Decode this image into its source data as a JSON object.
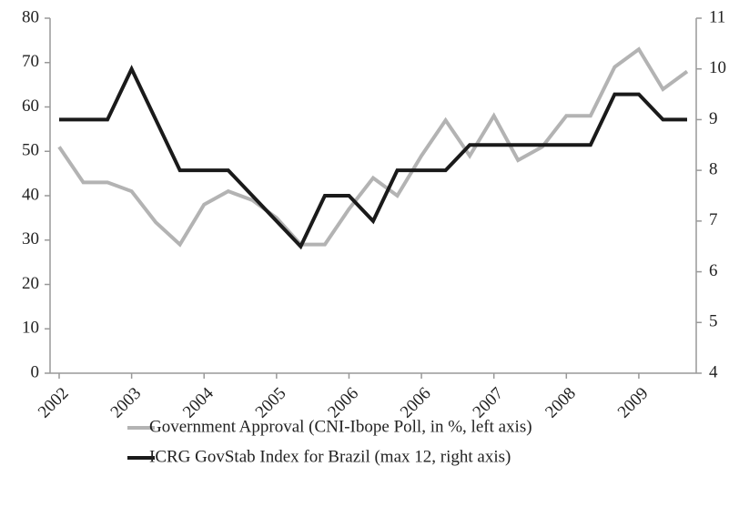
{
  "chart_data": {
    "type": "line",
    "categories": [
      "2002",
      null,
      null,
      "2003",
      null,
      null,
      "2004",
      null,
      null,
      "2005",
      null,
      null,
      "2006",
      null,
      null,
      "2006",
      null,
      null,
      "2007",
      null,
      null,
      "2008",
      null,
      null,
      "2009",
      null,
      null
    ],
    "series": [
      {
        "name": "Government Approval (CNI-Ibope Poll, in %, left axis)",
        "color": "#b3b3b3",
        "axis": "y",
        "values": [
          51,
          43,
          43,
          41,
          34,
          29,
          38,
          41,
          39,
          35,
          29,
          29,
          37,
          44,
          40,
          49,
          57,
          49,
          58,
          48,
          51,
          58,
          58,
          69,
          73,
          64,
          68
        ]
      },
      {
        "name": "ICRG GovStab Index for Brazil (max 12, right axis)",
        "color": "#1a1a1a",
        "axis": "y2",
        "values": [
          9,
          9,
          9,
          10,
          9,
          8,
          8,
          8,
          7.5,
          7,
          6.5,
          7.5,
          7.5,
          7,
          8,
          8,
          8,
          8.5,
          8.5,
          8.5,
          8.5,
          8.5,
          8.5,
          9.5,
          9.5,
          9,
          9
        ]
      }
    ],
    "ylim": [
      0,
      80
    ],
    "yticks": [
      0,
      10,
      20,
      30,
      40,
      50,
      60,
      70,
      80
    ],
    "y2lim": [
      4,
      11
    ],
    "y2ticks": [
      4,
      5,
      6,
      7,
      8,
      9,
      10,
      11
    ],
    "grid": false
  }
}
